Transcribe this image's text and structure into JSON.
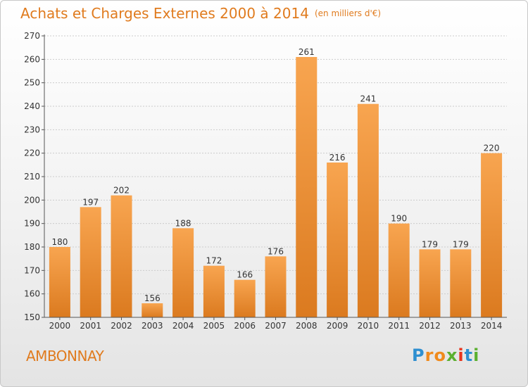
{
  "title": "Achats et Charges Externes 2000 à 2014",
  "unit": "(en milliers d'€)",
  "commune": "AMBONNAY",
  "logo": {
    "text": "Proxiti",
    "letters": [
      "P",
      "r",
      "o",
      "x",
      "i",
      "t",
      "i"
    ],
    "colors": [
      "#2e8fd0",
      "#f08a1c",
      "#f08a1c",
      "#5bb030",
      "#e8341c",
      "#2e8fd0",
      "#5bb030"
    ]
  },
  "colors": {
    "title": "#e07b1e",
    "bar_light": "#f8a550",
    "bar_dark": "#e07b1e",
    "axis": "#555555",
    "grid": "#d0d0d0"
  },
  "chart_data": {
    "type": "bar",
    "title": "Achats et Charges Externes 2000 à 2014",
    "xlabel": "",
    "ylabel": "",
    "categories": [
      "2000",
      "2001",
      "2002",
      "2003",
      "2004",
      "2005",
      "2006",
      "2007",
      "2008",
      "2009",
      "2010",
      "2011",
      "2012",
      "2013",
      "2014"
    ],
    "values": [
      180,
      197,
      202,
      156,
      188,
      172,
      166,
      176,
      261,
      216,
      241,
      190,
      179,
      179,
      220
    ],
    "ylim": [
      150,
      270
    ],
    "yticks": [
      150,
      160,
      170,
      180,
      190,
      200,
      210,
      220,
      230,
      240,
      250,
      260,
      270
    ],
    "grid": true,
    "data_labels": true
  }
}
